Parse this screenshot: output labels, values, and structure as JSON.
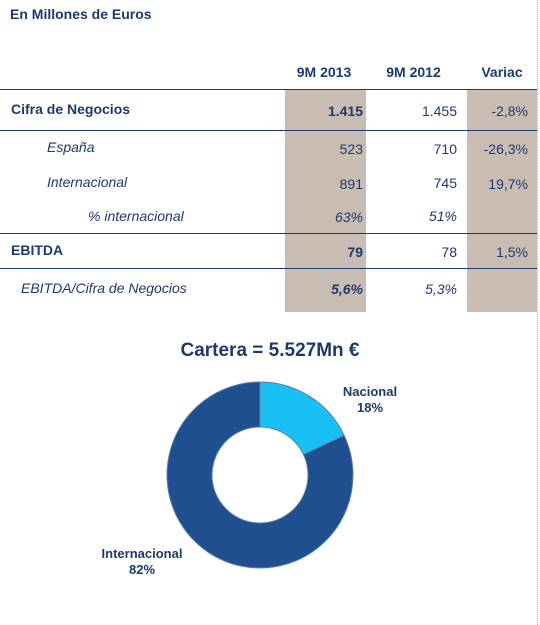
{
  "unit_label": "En Millones de Euros",
  "columns": [
    "9M 2013",
    "9M 2012",
    "Variac"
  ],
  "rows": [
    {
      "label": "Cifra de Negocios",
      "v2013": "1.415",
      "v2012": "1.455",
      "variac": "-2,8%"
    },
    {
      "label": "España",
      "v2013": "523",
      "v2012": "710",
      "variac": "-26,3%"
    },
    {
      "label": "Internacional",
      "v2013": "891",
      "v2012": "745",
      "variac": "19,7%"
    },
    {
      "label": "% internacional",
      "v2013": "63%",
      "v2012": "51%",
      "variac": ""
    },
    {
      "label": "EBITDA",
      "v2013": "79",
      "v2012": "78",
      "variac": "1,5%"
    },
    {
      "label": "EBITDA/Cifra de Negocios",
      "v2013": "5,6%",
      "v2012": "5,3%",
      "variac": ""
    }
  ],
  "colors": {
    "primary": "#1c3a6e",
    "highlight_column": "#c9bdb3",
    "internacional_slice": "#1f4f8e",
    "nacional_slice": "#19c0f3"
  },
  "chart_data": {
    "type": "pie",
    "variant": "donut",
    "title": "Cartera = 5.527Mn €",
    "slices": [
      {
        "name": "Nacional",
        "value": 18,
        "label": "18%"
      },
      {
        "name": "Internacional",
        "value": 82,
        "label": "82%"
      }
    ]
  }
}
